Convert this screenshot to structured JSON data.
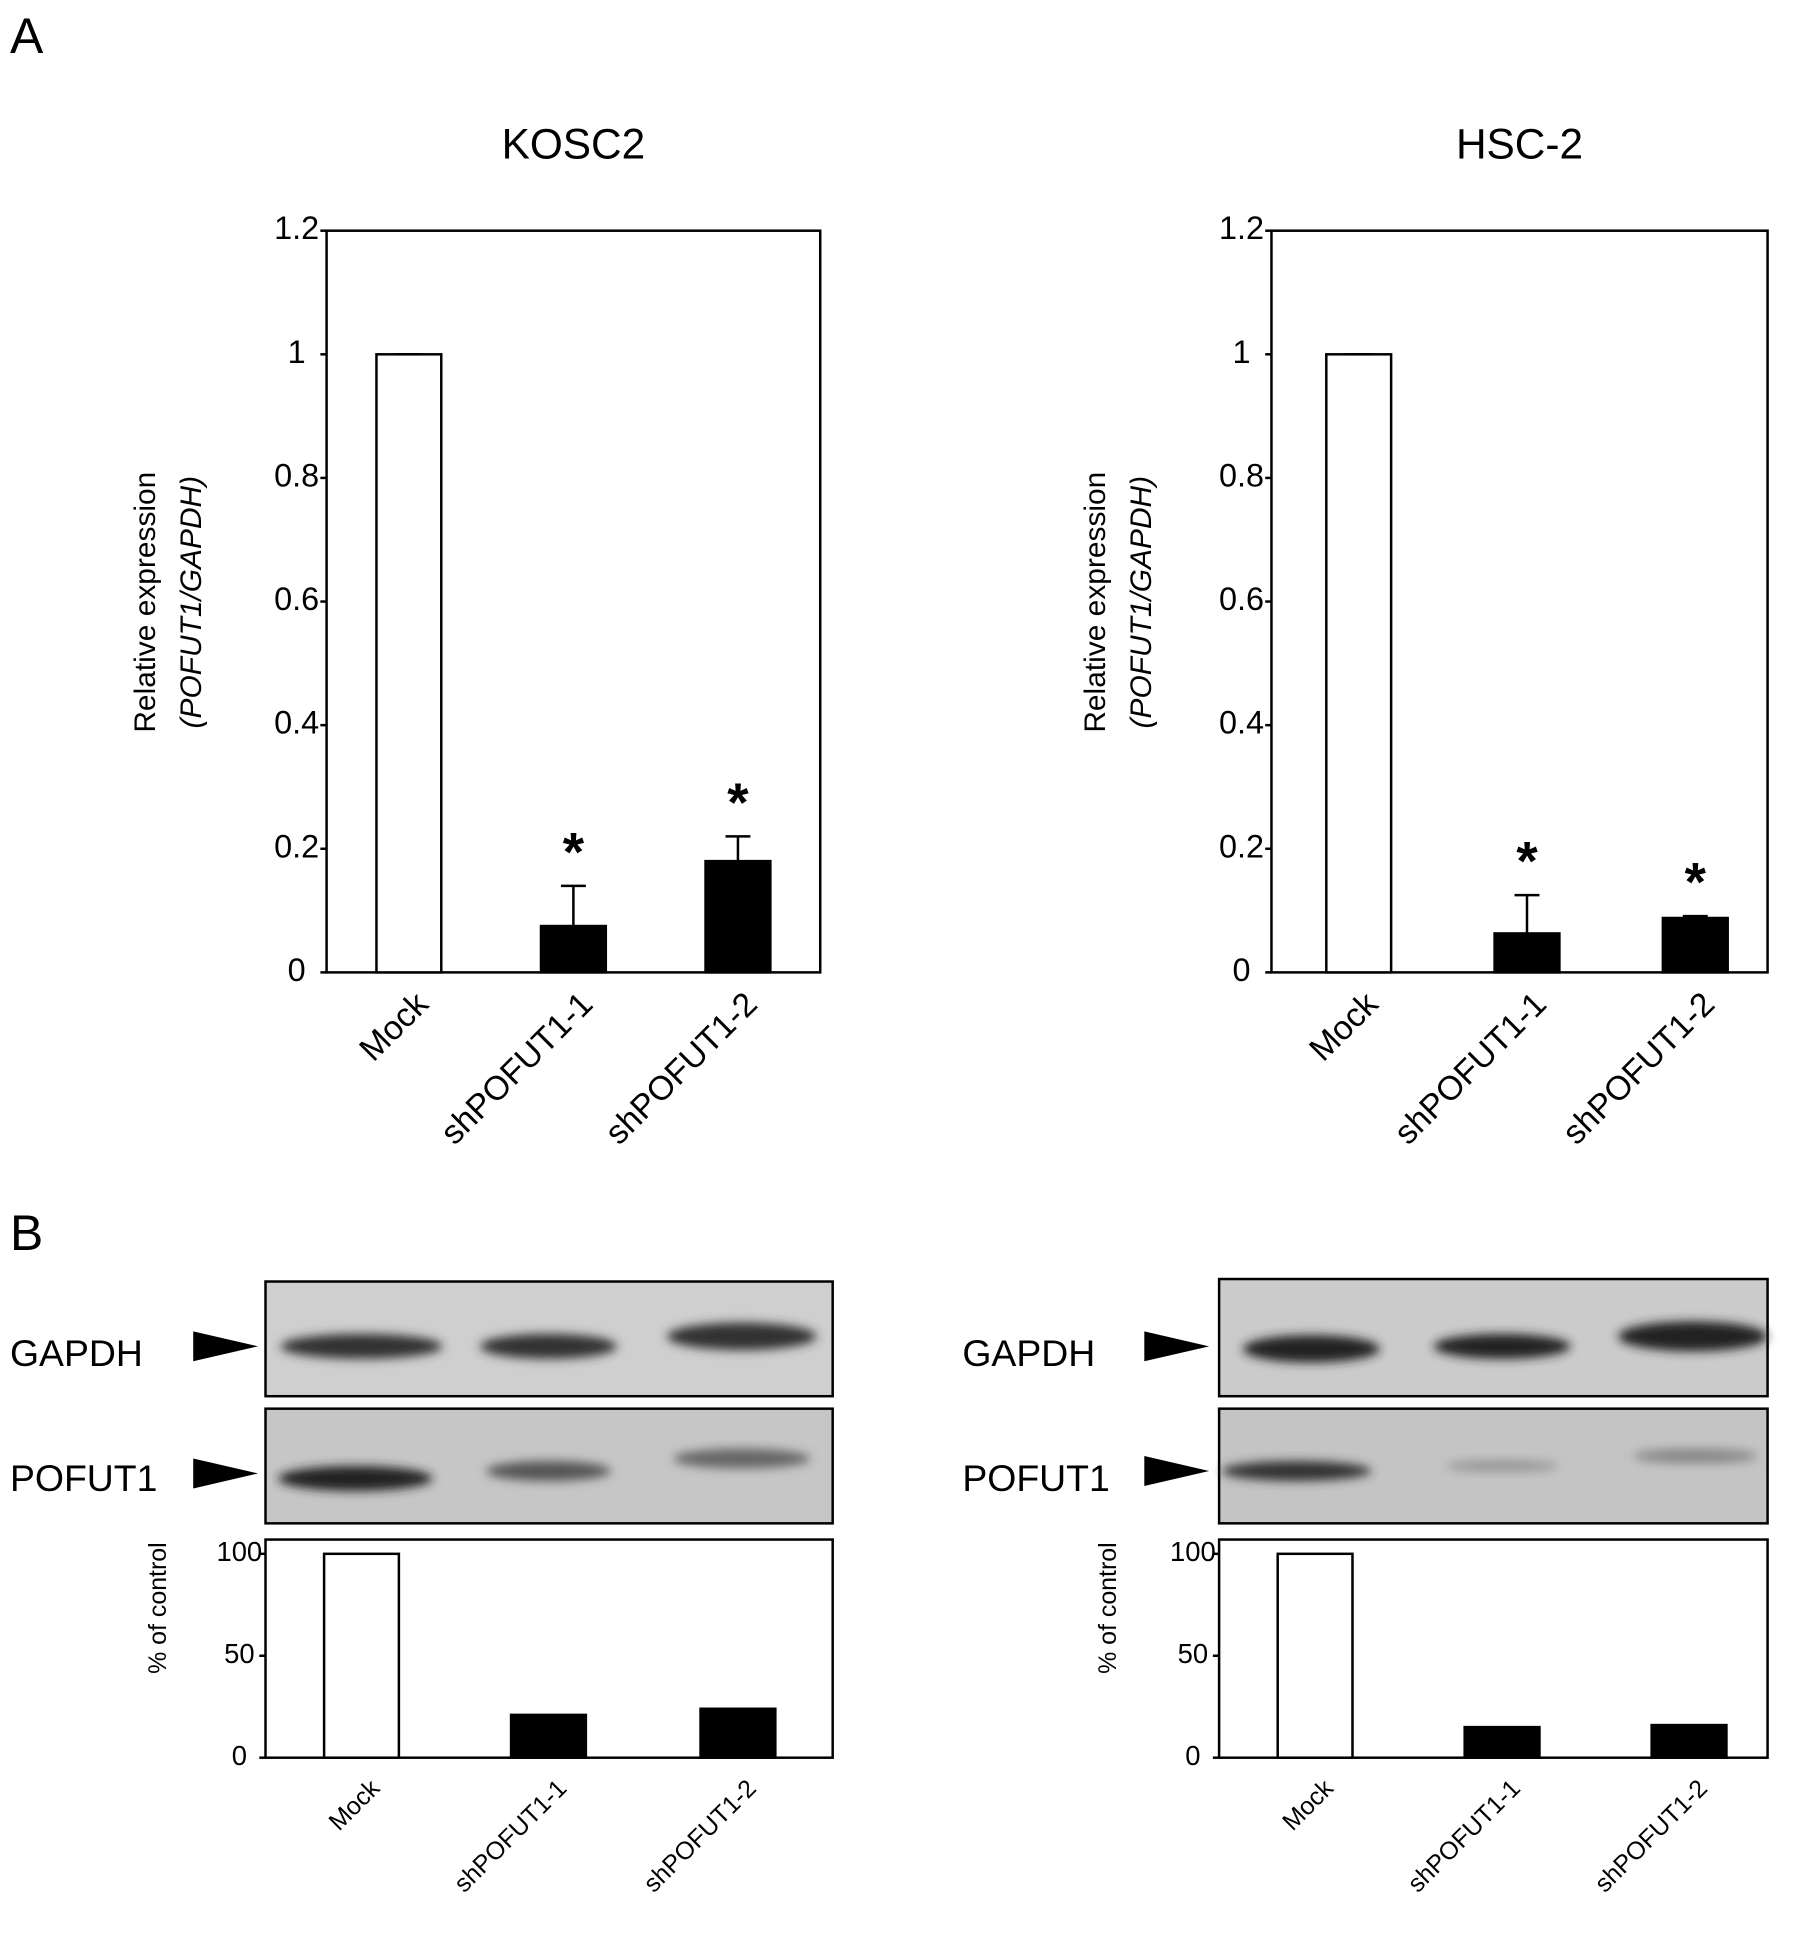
{
  "panels": [
    "A",
    "B"
  ],
  "blots": [
    {
      "labels": [
        "GAPDH",
        "POFUT1"
      ]
    },
    {
      "labels": [
        "GAPDH",
        "POFUT1"
      ]
    }
  ],
  "chart_data": [
    {
      "type": "bar",
      "title": "KOSC2",
      "ylabel": [
        "Relative expression",
        "(POFUT1/GAPDH)"
      ],
      "categories": [
        "Mock",
        "shPOFUT1-1",
        "shPOFUT1-2"
      ],
      "values": [
        1,
        0.075,
        0.18
      ],
      "errors": [
        0,
        0.065,
        0.04
      ],
      "significance": [
        null,
        "*",
        "*"
      ],
      "colors": [
        "#ffffff",
        "#000000",
        "#000000"
      ],
      "ylim": [
        0,
        1.2
      ],
      "yticks": [
        0,
        0.2,
        0.4,
        0.6,
        0.8,
        1,
        1.2
      ]
    },
    {
      "type": "bar",
      "title": "HSC-2",
      "ylabel": [
        "Relative expression",
        "(POFUT1/GAPDH)"
      ],
      "categories": [
        "Mock",
        "shPOFUT1-1",
        "shPOFUT1-2"
      ],
      "values": [
        1,
        0.063,
        0.088
      ],
      "errors": [
        0,
        0.062,
        0.003
      ],
      "significance": [
        null,
        "*",
        "*"
      ],
      "colors": [
        "#ffffff",
        "#000000",
        "#000000"
      ],
      "ylim": [
        0,
        1.2
      ],
      "yticks": [
        0,
        0.2,
        0.4,
        0.6,
        0.8,
        1,
        1.2
      ]
    },
    {
      "type": "bar",
      "ylabel": [
        "% of control"
      ],
      "categories": [
        "Mock",
        "shPOFUT1-1",
        "shPOFUT1-2"
      ],
      "values": [
        100,
        21,
        24
      ],
      "colors": [
        "#ffffff",
        "#000000",
        "#000000"
      ],
      "ylim": [
        0,
        107
      ],
      "yticks": [
        0,
        50,
        100
      ]
    },
    {
      "type": "bar",
      "ylabel": [
        "% of control"
      ],
      "categories": [
        "Mock",
        "shPOFUT1-1",
        "shPOFUT1-2"
      ],
      "values": [
        100,
        15,
        16
      ],
      "colors": [
        "#ffffff",
        "#000000",
        "#000000"
      ],
      "ylim": [
        0,
        107
      ],
      "yticks": [
        0,
        50,
        100
      ]
    }
  ]
}
